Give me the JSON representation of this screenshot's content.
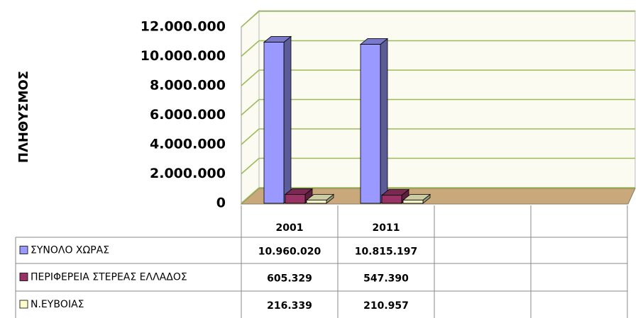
{
  "chart_data": {
    "type": "bar3d",
    "y_label": "ΠΛΗΘΥΣΜΟΣ",
    "categories": [
      "2001",
      "2011",
      null,
      null
    ],
    "series": [
      {
        "name": "ΣΥΝΟΛΟ ΧΩΡΑΣ",
        "color": "#9999ff",
        "values": [
          10960020,
          10815197,
          null,
          null
        ],
        "value_labels": [
          "10.960.020",
          "10.815.197",
          null,
          null
        ]
      },
      {
        "name": "ΠΕΡΙΦΕΡΕΙΑ ΣΤΕΡΕΑΣ ΕΛΛΑΔΟΣ",
        "color": "#993366",
        "values": [
          605329,
          547390,
          null,
          null
        ],
        "value_labels": [
          "605.329",
          "547.390",
          null,
          null
        ]
      },
      {
        "name": "Ν.ΕΥΒΟΙΑΣ",
        "color": "#ffffcc",
        "values": [
          216339,
          210957,
          null,
          null
        ],
        "value_labels": [
          "216.339",
          "210.957",
          null,
          null
        ]
      }
    ],
    "ylim": [
      0,
      12000000
    ],
    "yticks": [
      0,
      {
        "value": 2000000,
        "label": "2.000.000"
      },
      {
        "value": 4000000,
        "label": "4.000.000"
      },
      {
        "value": 6000000,
        "label": "6.000.000"
      },
      {
        "value": 8000000,
        "label": "8.000.000"
      },
      {
        "value": 10000000,
        "label": "10.000.000"
      },
      {
        "value": 12000000,
        "label": "12.000.000"
      }
    ],
    "grid": true
  }
}
